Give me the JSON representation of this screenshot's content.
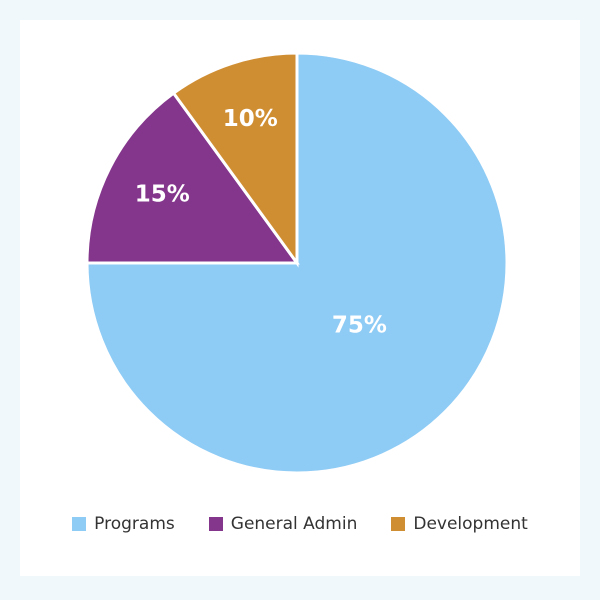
{
  "chart_data": {
    "type": "pie",
    "title": "",
    "legend_position": "bottom",
    "series": [
      {
        "name": "Programs",
        "value": 75,
        "label": "75%",
        "color": "#8ecbf5"
      },
      {
        "name": "General Admin",
        "value": 15,
        "label": "15%",
        "color": "#84368c"
      },
      {
        "name": "Development",
        "value": 10,
        "label": "10%",
        "color": "#d08e33"
      }
    ]
  },
  "legend": {
    "items": [
      {
        "label": "Programs",
        "color": "#8ecbf5"
      },
      {
        "label": "General Admin",
        "color": "#84368c"
      },
      {
        "label": "Development",
        "color": "#d08e33"
      }
    ]
  }
}
